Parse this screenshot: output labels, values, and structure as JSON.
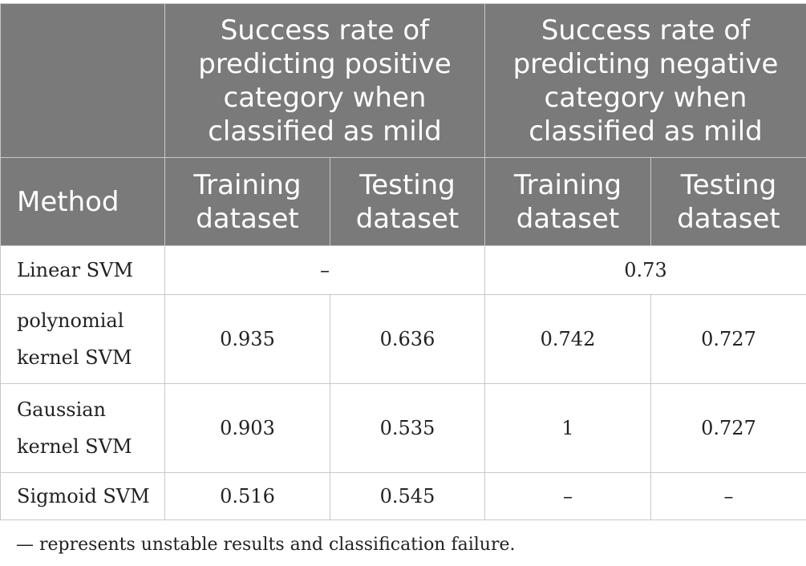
{
  "header": {
    "group_positive": [
      "Success rate of",
      "predicting positive",
      "category when",
      "classified as mild"
    ],
    "group_negative": [
      "Success rate of",
      "predicting negative",
      "category when",
      "classified as mild"
    ],
    "method": "Method",
    "training": [
      "Training",
      "dataset"
    ],
    "testing": [
      "Testing",
      "dataset"
    ]
  },
  "rows": [
    {
      "method": [
        "Linear SVM"
      ],
      "positive_merged": "–",
      "negative_merged": "0.73"
    },
    {
      "method": [
        "polynomial",
        "kernel SVM"
      ],
      "pos_train": "0.935",
      "pos_test": "0.636",
      "neg_train": "0.742",
      "neg_test": "0.727"
    },
    {
      "method": [
        "Gaussian",
        "kernel SVM"
      ],
      "pos_train": "0.903",
      "pos_test": "0.535",
      "neg_train": "1",
      "neg_test": "0.727"
    },
    {
      "method": [
        "Sigmoid SVM"
      ],
      "pos_train": "0.516",
      "pos_test": "0.545",
      "neg_train": "–",
      "neg_test": "–"
    }
  ],
  "footnote": "— represents unstable results and classification failure.",
  "colors": {
    "header_background": "#7a7a7a",
    "header_text": "#ffffff",
    "border": "#c8c8c8",
    "body_text": "#222222"
  }
}
